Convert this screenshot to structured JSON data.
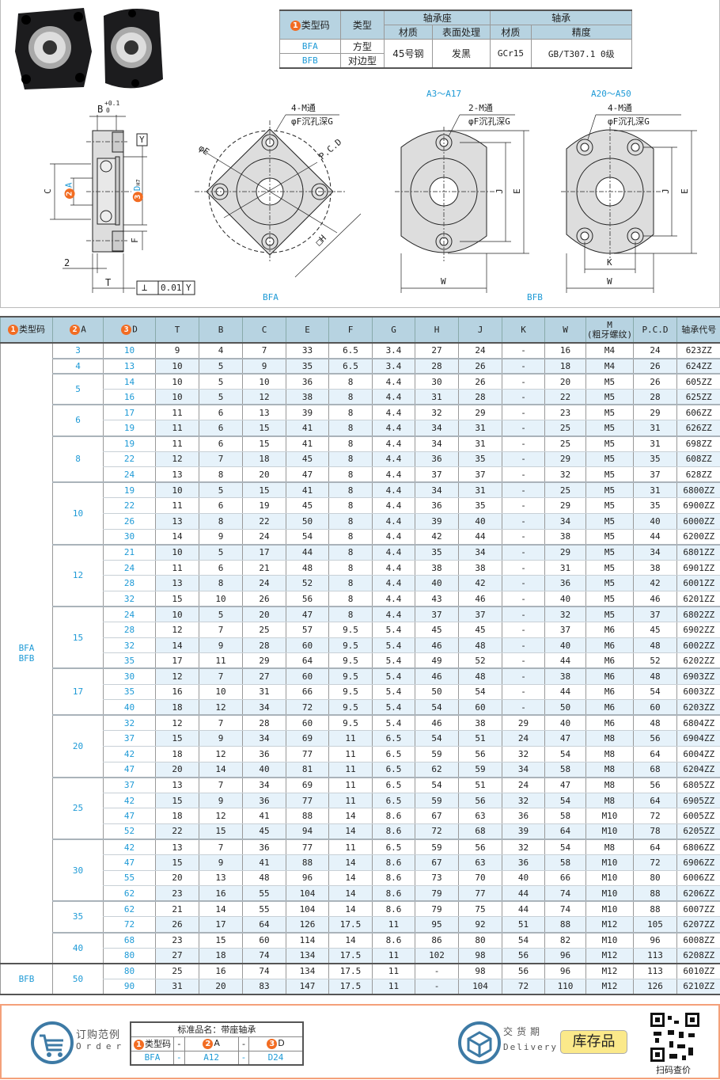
{
  "spec_table": {
    "headers": {
      "type_code": "类型码",
      "type": "类型",
      "housing": "轴承座",
      "bearing": "轴承",
      "material": "材质",
      "surface": "表面处理",
      "bearing_material": "材质",
      "precision": "精度"
    },
    "rows": [
      {
        "code": "BFA",
        "type": "方型"
      },
      {
        "code": "BFB",
        "type": "对边型"
      }
    ],
    "housing_material": "45号钢",
    "surface": "发黑",
    "bearing_material": "GCr15",
    "precision": "GB/T307.1 0级"
  },
  "drawings": {
    "side": {
      "b": "B",
      "b_tol_plus": "+0.1",
      "b_tol_zero": "0",
      "c": "C",
      "a": "A",
      "d": "D",
      "d_fit": "H7",
      "f": "F",
      "two": "2",
      "t": "T",
      "datum": "Y",
      "perp_symbol": "⊥",
      "perp_value": "0.01",
      "perp_datum": "Y"
    },
    "bfa": {
      "holes": "4-M通",
      "counterbore": "φF沉孔深G",
      "phi_e": "φE",
      "pcd": "P.C.D",
      "h": "□H",
      "caption": "BFA"
    },
    "bfb_small": {
      "range": "A3～A17",
      "holes": "2-M通",
      "counterbore": "φF沉孔深G",
      "j": "J",
      "e": "E",
      "w": "W"
    },
    "bfb_large": {
      "range": "A20～A50",
      "holes": "4-M通",
      "counterbore": "φF沉孔深G",
      "j": "J",
      "e": "E",
      "k": "K",
      "w": "W"
    },
    "bfb_caption": "BFB"
  },
  "main_table": {
    "headers": [
      "类型码",
      "A",
      "D",
      "T",
      "B",
      "C",
      "E",
      "F",
      "G",
      "H",
      "J",
      "K",
      "W",
      "M\n(粗牙螺纹)",
      "P.C.D",
      "轴承代号"
    ],
    "header_numbers": [
      "1",
      "2",
      "3"
    ],
    "type_groups": [
      {
        "label": "BFA\nBFB",
        "rows": 40
      },
      {
        "label": "BFB",
        "rows": 2
      }
    ],
    "groups": [
      {
        "a": "3",
        "rows": [
          [
            "10",
            "9",
            "4",
            "7",
            "33",
            "6.5",
            "3.4",
            "27",
            "24",
            "-",
            "16",
            "M4",
            "24",
            "623ZZ"
          ]
        ]
      },
      {
        "a": "4",
        "rows": [
          [
            "13",
            "10",
            "5",
            "9",
            "35",
            "6.5",
            "3.4",
            "28",
            "26",
            "-",
            "18",
            "M4",
            "26",
            "624ZZ"
          ]
        ]
      },
      {
        "a": "5",
        "rows": [
          [
            "14",
            "10",
            "5",
            "10",
            "36",
            "8",
            "4.4",
            "30",
            "26",
            "-",
            "20",
            "M5",
            "26",
            "605ZZ"
          ],
          [
            "16",
            "10",
            "5",
            "12",
            "38",
            "8",
            "4.4",
            "31",
            "28",
            "-",
            "22",
            "M5",
            "28",
            "625ZZ"
          ]
        ]
      },
      {
        "a": "6",
        "rows": [
          [
            "17",
            "11",
            "6",
            "13",
            "39",
            "8",
            "4.4",
            "32",
            "29",
            "-",
            "23",
            "M5",
            "29",
            "606ZZ"
          ],
          [
            "19",
            "11",
            "6",
            "15",
            "41",
            "8",
            "4.4",
            "34",
            "31",
            "-",
            "25",
            "M5",
            "31",
            "626ZZ"
          ]
        ]
      },
      {
        "a": "8",
        "rows": [
          [
            "19",
            "11",
            "6",
            "15",
            "41",
            "8",
            "4.4",
            "34",
            "31",
            "-",
            "25",
            "M5",
            "31",
            "698ZZ"
          ],
          [
            "22",
            "12",
            "7",
            "18",
            "45",
            "8",
            "4.4",
            "36",
            "35",
            "-",
            "29",
            "M5",
            "35",
            "608ZZ"
          ],
          [
            "24",
            "13",
            "8",
            "20",
            "47",
            "8",
            "4.4",
            "37",
            "37",
            "-",
            "32",
            "M5",
            "37",
            "628ZZ"
          ]
        ]
      },
      {
        "a": "10",
        "rows": [
          [
            "19",
            "10",
            "5",
            "15",
            "41",
            "8",
            "4.4",
            "34",
            "31",
            "-",
            "25",
            "M5",
            "31",
            "6800ZZ"
          ],
          [
            "22",
            "11",
            "6",
            "19",
            "45",
            "8",
            "4.4",
            "36",
            "35",
            "-",
            "29",
            "M5",
            "35",
            "6900ZZ"
          ],
          [
            "26",
            "13",
            "8",
            "22",
            "50",
            "8",
            "4.4",
            "39",
            "40",
            "-",
            "34",
            "M5",
            "40",
            "6000ZZ"
          ],
          [
            "30",
            "14",
            "9",
            "24",
            "54",
            "8",
            "4.4",
            "42",
            "44",
            "-",
            "38",
            "M5",
            "44",
            "6200ZZ"
          ]
        ]
      },
      {
        "a": "12",
        "rows": [
          [
            "21",
            "10",
            "5",
            "17",
            "44",
            "8",
            "4.4",
            "35",
            "34",
            "-",
            "29",
            "M5",
            "34",
            "6801ZZ"
          ],
          [
            "24",
            "11",
            "6",
            "21",
            "48",
            "8",
            "4.4",
            "38",
            "38",
            "-",
            "31",
            "M5",
            "38",
            "6901ZZ"
          ],
          [
            "28",
            "13",
            "8",
            "24",
            "52",
            "8",
            "4.4",
            "40",
            "42",
            "-",
            "36",
            "M5",
            "42",
            "6001ZZ"
          ],
          [
            "32",
            "15",
            "10",
            "26",
            "56",
            "8",
            "4.4",
            "43",
            "46",
            "-",
            "40",
            "M5",
            "46",
            "6201ZZ"
          ]
        ]
      },
      {
        "a": "15",
        "rows": [
          [
            "24",
            "10",
            "5",
            "20",
            "47",
            "8",
            "4.4",
            "37",
            "37",
            "-",
            "32",
            "M5",
            "37",
            "6802ZZ"
          ],
          [
            "28",
            "12",
            "7",
            "25",
            "57",
            "9.5",
            "5.4",
            "45",
            "45",
            "-",
            "37",
            "M6",
            "45",
            "6902ZZ"
          ],
          [
            "32",
            "14",
            "9",
            "28",
            "60",
            "9.5",
            "5.4",
            "46",
            "48",
            "-",
            "40",
            "M6",
            "48",
            "6002ZZ"
          ],
          [
            "35",
            "17",
            "11",
            "29",
            "64",
            "9.5",
            "5.4",
            "49",
            "52",
            "-",
            "44",
            "M6",
            "52",
            "6202ZZ"
          ]
        ]
      },
      {
        "a": "17",
        "rows": [
          [
            "30",
            "12",
            "7",
            "27",
            "60",
            "9.5",
            "5.4",
            "46",
            "48",
            "-",
            "38",
            "M6",
            "48",
            "6903ZZ"
          ],
          [
            "35",
            "16",
            "10",
            "31",
            "66",
            "9.5",
            "5.4",
            "50",
            "54",
            "-",
            "44",
            "M6",
            "54",
            "6003ZZ"
          ],
          [
            "40",
            "18",
            "12",
            "34",
            "72",
            "9.5",
            "5.4",
            "54",
            "60",
            "-",
            "50",
            "M6",
            "60",
            "6203ZZ"
          ]
        ]
      },
      {
        "a": "20",
        "rows": [
          [
            "32",
            "12",
            "7",
            "28",
            "60",
            "9.5",
            "5.4",
            "46",
            "38",
            "29",
            "40",
            "M6",
            "48",
            "6804ZZ"
          ],
          [
            "37",
            "15",
            "9",
            "34",
            "69",
            "11",
            "6.5",
            "54",
            "51",
            "24",
            "47",
            "M8",
            "56",
            "6904ZZ"
          ],
          [
            "42",
            "18",
            "12",
            "36",
            "77",
            "11",
            "6.5",
            "59",
            "56",
            "32",
            "54",
            "M8",
            "64",
            "6004ZZ"
          ],
          [
            "47",
            "20",
            "14",
            "40",
            "81",
            "11",
            "6.5",
            "62",
            "59",
            "34",
            "58",
            "M8",
            "68",
            "6204ZZ"
          ]
        ]
      },
      {
        "a": "25",
        "rows": [
          [
            "37",
            "13",
            "7",
            "34",
            "69",
            "11",
            "6.5",
            "54",
            "51",
            "24",
            "47",
            "M8",
            "56",
            "6805ZZ"
          ],
          [
            "42",
            "15",
            "9",
            "36",
            "77",
            "11",
            "6.5",
            "59",
            "56",
            "32",
            "54",
            "M8",
            "64",
            "6905ZZ"
          ],
          [
            "47",
            "18",
            "12",
            "41",
            "88",
            "14",
            "8.6",
            "67",
            "63",
            "36",
            "58",
            "M10",
            "72",
            "6005ZZ"
          ],
          [
            "52",
            "22",
            "15",
            "45",
            "94",
            "14",
            "8.6",
            "72",
            "68",
            "39",
            "64",
            "M10",
            "78",
            "6205ZZ"
          ]
        ]
      },
      {
        "a": "30",
        "rows": [
          [
            "42",
            "13",
            "7",
            "36",
            "77",
            "11",
            "6.5",
            "59",
            "56",
            "32",
            "54",
            "M8",
            "64",
            "6806ZZ"
          ],
          [
            "47",
            "15",
            "9",
            "41",
            "88",
            "14",
            "8.6",
            "67",
            "63",
            "36",
            "58",
            "M10",
            "72",
            "6906ZZ"
          ],
          [
            "55",
            "20",
            "13",
            "48",
            "96",
            "14",
            "8.6",
            "73",
            "70",
            "40",
            "66",
            "M10",
            "80",
            "6006ZZ"
          ],
          [
            "62",
            "23",
            "16",
            "55",
            "104",
            "14",
            "8.6",
            "79",
            "77",
            "44",
            "74",
            "M10",
            "88",
            "6206ZZ"
          ]
        ]
      },
      {
        "a": "35",
        "rows": [
          [
            "62",
            "21",
            "14",
            "55",
            "104",
            "14",
            "8.6",
            "79",
            "75",
            "44",
            "74",
            "M10",
            "88",
            "6007ZZ"
          ],
          [
            "72",
            "26",
            "17",
            "64",
            "126",
            "17.5",
            "11",
            "95",
            "92",
            "51",
            "88",
            "M12",
            "105",
            "6207ZZ"
          ]
        ]
      },
      {
        "a": "40",
        "rows": [
          [
            "68",
            "23",
            "15",
            "60",
            "114",
            "14",
            "8.6",
            "86",
            "80",
            "54",
            "82",
            "M10",
            "96",
            "6008ZZ"
          ],
          [
            "80",
            "27",
            "18",
            "74",
            "134",
            "17.5",
            "11",
            "102",
            "98",
            "56",
            "96",
            "M12",
            "113",
            "6208ZZ"
          ]
        ]
      },
      {
        "a": "50",
        "rows": [
          [
            "80",
            "25",
            "16",
            "74",
            "134",
            "17.5",
            "11",
            "-",
            "98",
            "56",
            "96",
            "M12",
            "113",
            "6010ZZ"
          ],
          [
            "90",
            "31",
            "20",
            "83",
            "147",
            "17.5",
            "11",
            "-",
            "104",
            "72",
            "110",
            "M12",
            "126",
            "6210ZZ"
          ]
        ]
      }
    ]
  },
  "footer": {
    "order_label": "订购范例",
    "order_en": "Order",
    "order_table": {
      "title": "标准品名：带座轴承",
      "h_type": "类型码",
      "h_a": "A",
      "h_d": "D",
      "dash": "-",
      "v_type": "BFA",
      "v_a": "A12",
      "v_d": "D24"
    },
    "delivery_label": "交货期",
    "delivery_en": "Delivery",
    "stock_badge": "库存品",
    "qr_label": "扫码查价"
  },
  "colors": {
    "accent": "#1e9ad6",
    "header": "#b7d3e1",
    "number_badge": "#f26c22",
    "stripe": "#e6f2fa",
    "footer_border": "#f4a07a",
    "icon": "#3d7aa5",
    "stock": "#fbe98a"
  }
}
